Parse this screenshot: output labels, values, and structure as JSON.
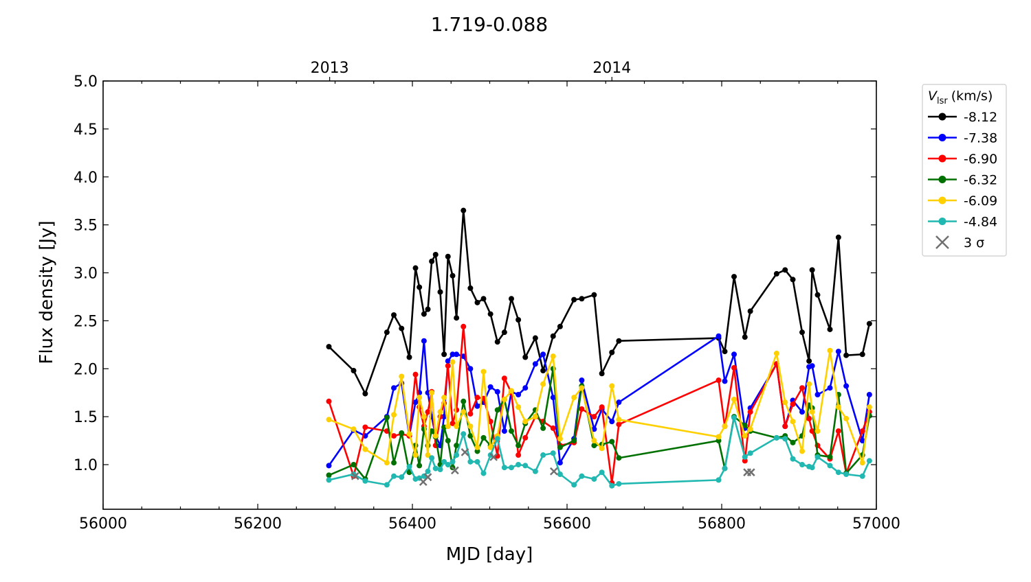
{
  "chart_data": {
    "type": "line",
    "title": "1.719-0.088",
    "xlabel": "MJD [day]",
    "ylabel": "Flux density [Jy]",
    "xlim": [
      56000,
      57000
    ],
    "ylim": [
      0.535,
      5.0
    ],
    "xticks": [
      56000,
      56200,
      56400,
      56600,
      56800,
      57000
    ],
    "yticks": [
      "1.0",
      "1.5",
      "2.0",
      "2.5",
      "3.0",
      "3.5",
      "4.0",
      "4.5",
      "5.0"
    ],
    "top_axis": [
      {
        "label": "2013",
        "mjd": 56293
      },
      {
        "label": "2014",
        "mjd": 56658
      }
    ],
    "grid": false,
    "legend": {
      "placement": "outside-right-top",
      "title_main": "V",
      "title_sub": "lsr",
      "title_unit": "(km/s)",
      "upper_limit_label": "3 σ"
    },
    "x": [
      56292,
      56324,
      56339,
      56367,
      56376,
      56386,
      56396,
      56404,
      56409,
      56415,
      56420,
      56425,
      56430,
      56436,
      56441,
      56446,
      56452,
      56457,
      56466,
      56475,
      56484,
      56492,
      56501,
      56510,
      56519,
      56528,
      56537,
      56546,
      56559,
      56569,
      56582,
      56591,
      56609,
      56619,
      56635,
      56645,
      56658,
      56667,
      56796,
      56804,
      56816,
      56830,
      56837,
      56871,
      56882,
      56892,
      56904,
      56913,
      56917,
      56924,
      56940,
      56951,
      56961,
      56982,
      56991
    ],
    "series": [
      {
        "name": "-8.12",
        "color": "#000000",
        "values": [
          2.23,
          1.98,
          1.74,
          2.38,
          2.56,
          2.42,
          2.12,
          3.05,
          2.85,
          2.57,
          2.62,
          3.12,
          3.19,
          2.8,
          2.15,
          3.17,
          2.97,
          2.53,
          3.65,
          2.84,
          2.69,
          2.73,
          2.57,
          2.28,
          2.38,
          2.73,
          2.51,
          2.12,
          2.32,
          1.98,
          2.34,
          2.44,
          2.72,
          2.73,
          2.77,
          1.95,
          2.17,
          2.29,
          2.32,
          2.18,
          2.96,
          2.33,
          2.6,
          2.99,
          3.03,
          2.93,
          2.38,
          2.08,
          3.03,
          2.77,
          2.41,
          3.37,
          2.14,
          2.15,
          2.47
        ]
      },
      {
        "name": "-7.38",
        "color": "#0000ff",
        "values": [
          0.99,
          1.36,
          1.3,
          1.5,
          1.8,
          1.85,
          1.3,
          1.65,
          1.75,
          2.29,
          1.75,
          1.5,
          1.3,
          1.2,
          1.5,
          2.08,
          2.15,
          2.15,
          2.13,
          2.0,
          1.61,
          1.65,
          1.81,
          1.76,
          1.35,
          1.76,
          1.73,
          1.8,
          2.05,
          2.15,
          1.7,
          1.02,
          1.27,
          1.88,
          1.37,
          1.58,
          1.45,
          1.65,
          2.34,
          1.87,
          2.15,
          1.38,
          1.59,
          2.05,
          1.4,
          1.67,
          1.55,
          2.02,
          2.03,
          1.73,
          1.8,
          2.18,
          1.82,
          1.25,
          1.73
        ]
      },
      {
        "name": "-6.90",
        "color": "#ff0000",
        "values": [
          1.66,
          0.88,
          1.39,
          1.35,
          1.3,
          1.32,
          1.3,
          1.94,
          1.6,
          1.4,
          1.55,
          1.76,
          1.2,
          1.5,
          1.64,
          2.03,
          1.43,
          1.57,
          2.44,
          1.53,
          1.7,
          1.69,
          1.45,
          1.09,
          1.9,
          1.75,
          1.1,
          1.28,
          1.5,
          1.45,
          1.38,
          1.2,
          1.23,
          1.58,
          1.5,
          1.6,
          0.81,
          1.42,
          1.88,
          1.4,
          2.01,
          1.04,
          1.55,
          2.05,
          1.4,
          1.63,
          1.8,
          1.48,
          1.35,
          1.2,
          1.06,
          1.35,
          0.91,
          1.35,
          1.55
        ]
      },
      {
        "name": "-6.32",
        "color": "#007000",
        "values": [
          0.89,
          1.0,
          0.85,
          1.49,
          1.02,
          1.33,
          0.92,
          1.2,
          0.99,
          1.37,
          1.2,
          1.35,
          1.29,
          1.0,
          1.39,
          1.25,
          0.97,
          1.2,
          1.66,
          1.3,
          1.14,
          1.28,
          1.2,
          1.57,
          1.68,
          1.35,
          1.2,
          1.43,
          1.57,
          1.38,
          2.0,
          1.18,
          1.25,
          1.82,
          1.2,
          1.21,
          1.24,
          1.07,
          1.25,
          0.96,
          1.5,
          1.41,
          1.35,
          1.28,
          1.3,
          1.23,
          1.3,
          1.62,
          1.59,
          1.1,
          1.08,
          1.73,
          0.91,
          1.1,
          1.51
        ]
      },
      {
        "name": "-6.09",
        "color": "#ffd000",
        "values": [
          1.47,
          1.37,
          1.16,
          1.02,
          1.52,
          1.92,
          1.32,
          1.1,
          1.7,
          1.5,
          1.1,
          1.75,
          1.3,
          1.55,
          1.7,
          1.4,
          2.07,
          1.4,
          1.55,
          1.4,
          1.18,
          1.97,
          1.18,
          1.3,
          1.68,
          1.77,
          1.6,
          1.45,
          1.5,
          1.84,
          2.13,
          1.27,
          1.7,
          1.8,
          1.25,
          1.17,
          1.82,
          1.47,
          1.29,
          1.4,
          1.68,
          1.3,
          1.37,
          2.16,
          1.65,
          1.45,
          1.14,
          1.84,
          1.55,
          1.35,
          2.19,
          1.6,
          1.48,
          1.02,
          1.6
        ]
      },
      {
        "name": "-4.84",
        "color": "#20b8b0",
        "values": [
          0.84,
          0.9,
          0.83,
          0.79,
          0.88,
          0.87,
          0.98,
          0.85,
          0.86,
          0.88,
          0.93,
          1.07,
          0.96,
          0.95,
          1.03,
          1.0,
          1.03,
          1.1,
          1.32,
          1.03,
          1.03,
          0.91,
          1.1,
          1.27,
          0.97,
          0.97,
          1.0,
          0.99,
          0.93,
          1.1,
          1.12,
          0.9,
          0.79,
          0.88,
          0.85,
          0.92,
          0.78,
          0.8,
          0.84,
          0.96,
          1.49,
          1.08,
          1.12,
          1.28,
          1.27,
          1.06,
          1.0,
          0.98,
          0.97,
          1.08,
          0.99,
          0.92,
          0.9,
          0.88,
          1.04
        ]
      }
    ],
    "upper_limits_3sigma": {
      "color": "#707070",
      "x": [
        56326,
        56414,
        56420,
        56455,
        56468,
        56505,
        56583,
        56833,
        56838
      ],
      "y": [
        0.88,
        0.82,
        0.87,
        0.94,
        1.13,
        1.08,
        0.93,
        0.92,
        0.92
      ]
    }
  }
}
